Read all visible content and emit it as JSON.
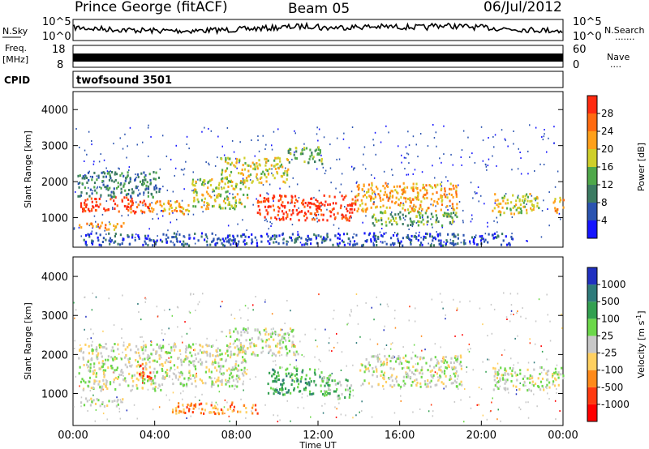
{
  "header": {
    "station": "Prince George (fitACF)",
    "beam": "Beam 05",
    "date": "06/Jul/2012"
  },
  "noise_panel": {
    "left_label": "N.Sky",
    "right_label": "N.Search",
    "left_ticks": [
      "10^5",
      "10^0"
    ],
    "right_ticks": [
      "10^5",
      "10^0"
    ]
  },
  "freq_panel": {
    "left_label_1": "Freq.",
    "left_label_2": "[MHz]",
    "right_label": "Nave",
    "left_ticks": [
      "18",
      "8"
    ],
    "right_ticks": [
      "60",
      "0"
    ]
  },
  "cpid": {
    "label": "CPID",
    "value": "twofsound 3501"
  },
  "chart_data": [
    {
      "type": "heatmap",
      "panel": "power",
      "ylabel": "Slant Range [km]",
      "ylim": [
        180,
        4500
      ],
      "yticks": [
        "1000",
        "2000",
        "3000",
        "4000"
      ],
      "xlim": [
        "00:00",
        "24:00"
      ],
      "xticks": [
        "00:00",
        "04:00",
        "08:00",
        "12:00",
        "16:00",
        "20:00",
        "00:00"
      ],
      "colorbar": {
        "label": "Power [dB]",
        "ticks": [
          "4",
          "8",
          "12",
          "16",
          "20",
          "24",
          "28"
        ],
        "colors": [
          "#1515ff",
          "#2a53b0",
          "#3b7b62",
          "#4fa84a",
          "#cfcf2a",
          "#ffa01a",
          "#ff6a10",
          "#ff2a10"
        ]
      },
      "regions": [
        {
          "t": [
            0.2,
            2.5
          ],
          "r": [
            700,
            900
          ],
          "level": 5
        },
        {
          "t": [
            0.3,
            3.0
          ],
          "r": [
            1200,
            1600
          ],
          "level": 7
        },
        {
          "t": [
            2.6,
            4.4
          ],
          "r": [
            1150,
            1500
          ],
          "level": 6
        },
        {
          "t": [
            4.4,
            5.8
          ],
          "r": [
            1100,
            1500
          ],
          "level": 5
        },
        {
          "t": [
            0.2,
            4.2
          ],
          "r": [
            1600,
            2300
          ],
          "level": 2
        },
        {
          "t": [
            5.8,
            8.6
          ],
          "r": [
            1250,
            2100
          ],
          "level": 4
        },
        {
          "t": [
            7.2,
            10.5
          ],
          "r": [
            2000,
            2700
          ],
          "level": 4
        },
        {
          "t": [
            9.0,
            13.8
          ],
          "r": [
            950,
            1650
          ],
          "level": 7
        },
        {
          "t": [
            10.5,
            12.2
          ],
          "r": [
            2500,
            3000
          ],
          "level": 3
        },
        {
          "t": [
            13.8,
            18.8
          ],
          "r": [
            1200,
            2000
          ],
          "level": 5
        },
        {
          "t": [
            14.5,
            18.8
          ],
          "r": [
            800,
            1200
          ],
          "level": 3
        },
        {
          "t": [
            20.5,
            22.8
          ],
          "r": [
            1100,
            1700
          ],
          "level": 4
        },
        {
          "t": [
            23.5,
            24.0
          ],
          "r": [
            1150,
            1600
          ],
          "level": 5
        },
        {
          "t": [
            0.5,
            21.5
          ],
          "r": [
            250,
            600
          ],
          "level": 1
        }
      ]
    },
    {
      "type": "heatmap",
      "panel": "velocity",
      "ylabel": "Slant Range [km]",
      "ylim": [
        180,
        4500
      ],
      "yticks": [
        "1000",
        "2000",
        "3000",
        "4000"
      ],
      "xlim": [
        "00:00",
        "24:00"
      ],
      "xticks": [
        "00:00",
        "04:00",
        "08:00",
        "12:00",
        "16:00",
        "20:00",
        "00:00"
      ],
      "xlabel": "Time UT",
      "colorbar": {
        "label": "Velocity [m s^-1]",
        "ticks": [
          "1000",
          "500",
          "100",
          "25",
          "-25",
          "-100",
          "-500",
          "-1000"
        ],
        "colors": [
          "#2030c0",
          "#2e7a7a",
          "#32a050",
          "#6cd84a",
          "#c8c8c8",
          "#ffd060",
          "#ff8a1a",
          "#ff3a10",
          "#ff0000"
        ]
      },
      "regions": [
        {
          "t": [
            0.2,
            4.4
          ],
          "r": [
            1100,
            2300
          ],
          "level": 4
        },
        {
          "t": [
            3.2,
            3.8
          ],
          "r": [
            1400,
            1800
          ],
          "level": 7
        },
        {
          "t": [
            0.2,
            2.5
          ],
          "r": [
            700,
            900
          ],
          "level": 4
        },
        {
          "t": [
            4.4,
            8.5
          ],
          "r": [
            1200,
            2300
          ],
          "level": 4
        },
        {
          "t": [
            7.5,
            11.0
          ],
          "r": [
            2000,
            2700
          ],
          "level": 4
        },
        {
          "t": [
            9.5,
            12.5
          ],
          "r": [
            1000,
            1700
          ],
          "level": 2
        },
        {
          "t": [
            12.2,
            13.6
          ],
          "r": [
            900,
            1500
          ],
          "level": 3
        },
        {
          "t": [
            4.8,
            9.0
          ],
          "r": [
            500,
            800
          ],
          "level": 6
        },
        {
          "t": [
            14.0,
            19.0
          ],
          "r": [
            1200,
            2000
          ],
          "level": 4
        },
        {
          "t": [
            20.5,
            24.0
          ],
          "r": [
            1100,
            1700
          ],
          "level": 4
        }
      ]
    }
  ]
}
